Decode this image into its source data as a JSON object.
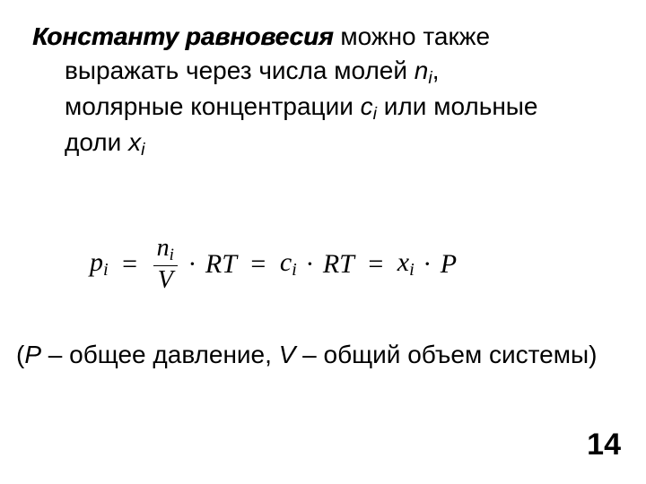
{
  "text": {
    "title_bold": "Константу равновесия",
    "after_title": " можно также",
    "line2a": "выражать через числа молей ",
    "sym_n": "n",
    "sub_i1": "i",
    "comma1": ",",
    "line3a": "молярные концентрации ",
    "sym_c": "с",
    "sub_i2": "i",
    "line3b": " или мольные",
    "line4a": "доли ",
    "sym_x": "x",
    "sub_i3": "i"
  },
  "formula": {
    "p": "p",
    "p_sub": "i",
    "eq": "=",
    "n": "n",
    "n_sub": "i",
    "V": "V",
    "dot": "·",
    "R": "R",
    "T": "T",
    "c": "c",
    "c_sub": "i",
    "x": "x",
    "x_sub": "i",
    "P": "P"
  },
  "note": {
    "open": "(",
    "P": "P",
    "t1": " – общее давление, ",
    "V": "V",
    "t2": " – общий объем системы)",
    "close": ""
  },
  "page": "14"
}
